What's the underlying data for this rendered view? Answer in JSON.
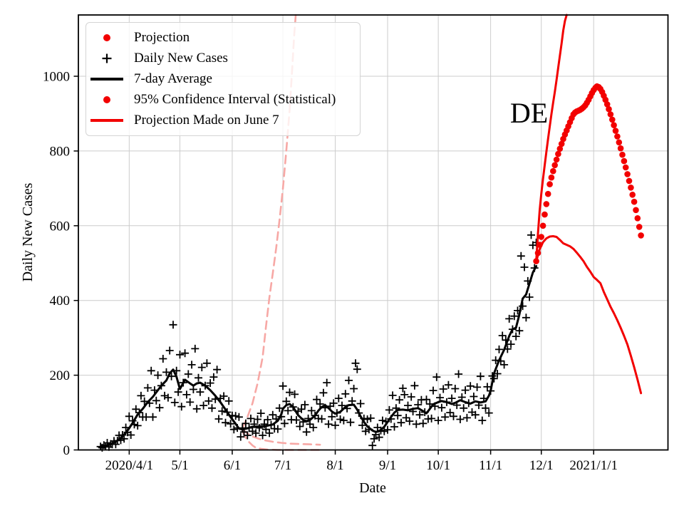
{
  "figure": {
    "annotation": {
      "label": "DE",
      "day": 225.5,
      "value": 876
    },
    "colors": {
      "projection_red": "#f20000",
      "ci_pink": "#f7a8a5",
      "series_black": "#000000",
      "grid_gray": "#cccccc"
    }
  },
  "legend": {
    "items": [
      {
        "label": "Projection",
        "marker": "red-dot"
      },
      {
        "label": "Daily New Cases",
        "marker": "black-plus"
      },
      {
        "label": "7-day Average",
        "marker": "black-line"
      },
      {
        "label": "95% Confidence Interval (Statistical)",
        "marker": "red-dot"
      },
      {
        "label": "Projection Made on June 7",
        "marker": "red-line"
      }
    ]
  },
  "chart_data": {
    "type": "line+scatter",
    "x_axis": {
      "label": "Date",
      "day_zero": "2020/4/1",
      "range_days": [
        -30.1,
        319
      ],
      "ticks": [
        {
          "day": 0,
          "label": "2020/4/1"
        },
        {
          "day": 30,
          "label": "5/1"
        },
        {
          "day": 61,
          "label": "6/1"
        },
        {
          "day": 91,
          "label": "7/1"
        },
        {
          "day": 122,
          "label": "8/1"
        },
        {
          "day": 153,
          "label": "9/1"
        },
        {
          "day": 183,
          "label": "10/1"
        },
        {
          "day": 214,
          "label": "11/1"
        },
        {
          "day": 244,
          "label": "12/1"
        },
        {
          "day": 275,
          "label": "2021/1/1"
        }
      ]
    },
    "y_axis": {
      "label": "Daily New Cases",
      "range": [
        0,
        1164
      ],
      "ticks": [
        0,
        200,
        400,
        600,
        800,
        1000
      ]
    },
    "series": [
      {
        "id": "june7-ci-upper",
        "name": "95% Confidence Interval (Statistical) upper",
        "kind": "line",
        "dash": "11 7",
        "width": 2.6,
        "color": "#f7a8a5",
        "points": [
          [
            67,
            58
          ],
          [
            70,
            88
          ],
          [
            73,
            125
          ],
          [
            76,
            178
          ],
          [
            79,
            248
          ],
          [
            81,
            330
          ],
          [
            83,
            408
          ],
          [
            85,
            472
          ],
          [
            87,
            540
          ],
          [
            89,
            615
          ],
          [
            91,
            700
          ],
          [
            93,
            800
          ],
          [
            95,
            910
          ],
          [
            96.5,
            1020
          ],
          [
            97.7,
            1110
          ],
          [
            98.6,
            1164
          ]
        ]
      },
      {
        "id": "june7-projection-mid",
        "name": "June 7 projection (middle)",
        "kind": "line",
        "dash": "11 7",
        "width": 2.6,
        "color": "#f7a8a5",
        "points": [
          [
            67,
            55
          ],
          [
            70,
            44
          ],
          [
            73,
            36
          ],
          [
            76,
            31
          ],
          [
            80,
            26
          ],
          [
            85,
            22
          ],
          [
            90,
            19
          ],
          [
            95,
            17
          ],
          [
            101,
            16
          ],
          [
            107,
            15
          ],
          [
            113,
            14
          ]
        ]
      },
      {
        "id": "june7-ci-lower",
        "name": "95% Confidence Interval (Statistical) lower",
        "kind": "line",
        "dash": "11 7",
        "width": 2.6,
        "color": "#f7a8a5",
        "points": [
          [
            67,
            50
          ],
          [
            69,
            33
          ],
          [
            71,
            21
          ],
          [
            73,
            12
          ],
          [
            75,
            6
          ],
          [
            78,
            3
          ],
          [
            82,
            1
          ],
          [
            88,
            0
          ],
          [
            96,
            0
          ],
          [
            104,
            0
          ],
          [
            113,
            0
          ]
        ]
      },
      {
        "id": "seven-day-average",
        "name": "7-day Average",
        "kind": "line",
        "dash": null,
        "width": 3,
        "color": "#000000",
        "points": [
          [
            -17,
            8
          ],
          [
            -14,
            11
          ],
          [
            -11,
            15
          ],
          [
            -8,
            22
          ],
          [
            -5,
            32
          ],
          [
            -2,
            46
          ],
          [
            0,
            58
          ],
          [
            2,
            72
          ],
          [
            5,
            95
          ],
          [
            8,
            110
          ],
          [
            11,
            128
          ],
          [
            14,
            142
          ],
          [
            17,
            160
          ],
          [
            19,
            172
          ],
          [
            22,
            186
          ],
          [
            24,
            205
          ],
          [
            26,
            215
          ],
          [
            28,
            196
          ],
          [
            30,
            163
          ],
          [
            33,
            188
          ],
          [
            36,
            178
          ],
          [
            38,
            172
          ],
          [
            40,
            178
          ],
          [
            42,
            180
          ],
          [
            45,
            172
          ],
          [
            48,
            160
          ],
          [
            51,
            145
          ],
          [
            54,
            128
          ],
          [
            57,
            108
          ],
          [
            60,
            88
          ],
          [
            63,
            70
          ],
          [
            65,
            57
          ],
          [
            67,
            55
          ],
          [
            70,
            58
          ],
          [
            73,
            62
          ],
          [
            77,
            63
          ],
          [
            81,
            64
          ],
          [
            85,
            68
          ],
          [
            88,
            78
          ],
          [
            90,
            95
          ],
          [
            91,
            110
          ],
          [
            93,
            120
          ],
          [
            95,
            123
          ],
          [
            97,
            115
          ],
          [
            100,
            93
          ],
          [
            103,
            80
          ],
          [
            105,
            77
          ],
          [
            107,
            80
          ],
          [
            110,
            92
          ],
          [
            112,
            105
          ],
          [
            114,
            115
          ],
          [
            116,
            120
          ],
          [
            118,
            112
          ],
          [
            120,
            103
          ],
          [
            122,
            97
          ],
          [
            125,
            102
          ],
          [
            128,
            115
          ],
          [
            130,
            120
          ],
          [
            133,
            121
          ],
          [
            135,
            108
          ],
          [
            137,
            90
          ],
          [
            139,
            75
          ],
          [
            141,
            63
          ],
          [
            144,
            52
          ],
          [
            146,
            48
          ],
          [
            148,
            50
          ],
          [
            151,
            62
          ],
          [
            153,
            75
          ],
          [
            155,
            88
          ],
          [
            157,
            100
          ],
          [
            159,
            107
          ],
          [
            162,
            108
          ],
          [
            165,
            106
          ],
          [
            168,
            110
          ],
          [
            171,
            112
          ],
          [
            174,
            104
          ],
          [
            176,
            98
          ],
          [
            178,
            110
          ],
          [
            180,
            122
          ],
          [
            183,
            128
          ],
          [
            185,
            131
          ],
          [
            188,
            128
          ],
          [
            191,
            123
          ],
          [
            193,
            126
          ],
          [
            196,
            133
          ],
          [
            199,
            128
          ],
          [
            202,
            124
          ],
          [
            205,
            130
          ],
          [
            208,
            127
          ],
          [
            211,
            130
          ],
          [
            213,
            145
          ],
          [
            214,
            158
          ],
          [
            216,
            205
          ],
          [
            219,
            240
          ],
          [
            222,
            268
          ],
          [
            225,
            305
          ],
          [
            227,
            323
          ],
          [
            229,
            327
          ],
          [
            231,
            362
          ],
          [
            233,
            405
          ],
          [
            235,
            416
          ],
          [
            237,
            445
          ],
          [
            239,
            475
          ],
          [
            241,
            492
          ]
        ]
      },
      {
        "id": "daily-new-cases",
        "name": "Daily New Cases",
        "kind": "scatter",
        "marker": "plus",
        "size": 5.5,
        "width": 1.8,
        "color": "#000000",
        "start_day": -17,
        "values": [
          9,
          6,
          13,
          10,
          19,
          8,
          16,
          15,
          24,
          15,
          25,
          39,
          26,
          40,
          30,
          60,
          47,
          90,
          40,
          78,
          68,
          109,
          65,
          100,
          145,
          88,
          130,
          88,
          166,
          125,
          212,
          88,
          160,
          132,
          200,
          113,
          172,
          244,
          145,
          208,
          140,
          266,
          197,
          335,
          127,
          212,
          155,
          255,
          116,
          180,
          259,
          148,
          203,
          128,
          228,
          162,
          271,
          110,
          193,
          155,
          221,
          119,
          172,
          232,
          131,
          179,
          112,
          195,
          136,
          215,
          83,
          138,
          104,
          144,
          73,
          101,
          131,
          70,
          92,
          55,
          91,
          59,
          88,
          35,
          59,
          48,
          71,
          39,
          59,
          84,
          50,
          69,
          45,
          82,
          59,
          98,
          39,
          69,
          55,
          81,
          45,
          67,
          94,
          57,
          83,
          56,
          112,
          89,
          171,
          71,
          130,
          105,
          154,
          81,
          115,
          149,
          80,
          104,
          63,
          109,
          75,
          121,
          48,
          84,
          69,
          105,
          60,
          92,
          135,
          84,
          123,
          83,
          153,
          113,
          180,
          69,
          117,
          89,
          125,
          66,
          99,
          138,
          82,
          119,
          79,
          150,
          111,
          186,
          74,
          131,
          164,
          232,
          216,
          99,
          124,
          66,
          84,
          50,
          82,
          55,
          85,
          12,
          30,
          41,
          60,
          34,
          52,
          79,
          50,
          76,
          54,
          107,
          83,
          146,
          62,
          112,
          92,
          134,
          73,
          165,
          148,
          86,
          119,
          77,
          142,
          103,
          172,
          69,
          121,
          94,
          134,
          71,
          101,
          135,
          83,
          123,
          84,
          159,
          117,
          195,
          79,
          140,
          113,
          163,
          88,
          128,
          174,
          100,
          138,
          90,
          164,
          120,
          203,
          82,
          141,
          112,
          160,
          86,
          125,
          171,
          101,
          143,
          94,
          168,
          120,
          197,
          79,
          138,
          112,
          169,
          99,
          158,
          198,
          191,
          240,
          204,
          269,
          238,
          306,
          228,
          294,
          270,
          351,
          283,
          323,
          358,
          304,
          373,
          319,
          519,
          385,
          489,
          354,
          452,
          409,
          575,
          548,
          487,
          555
        ]
      },
      {
        "id": "projection-dots",
        "name": "Projection",
        "kind": "scatter",
        "marker": "dot",
        "size": 4.3,
        "color": "#f20000",
        "start_day": 241,
        "values": [
          505,
          527,
          549,
          570,
          600,
          630,
          658,
          685,
          711,
          729,
          746,
          762,
          777,
          792,
          806,
          819,
          832,
          844,
          855,
          866,
          877,
          888,
          898,
          903,
          906,
          908,
          910,
          913,
          917,
          922,
          929,
          937,
          946,
          955,
          963,
          969,
          973,
          971,
          966,
          958,
          948,
          937,
          925,
          912,
          898,
          884,
          869,
          854,
          839,
          823,
          807,
          790,
          773,
          756,
          738,
          720,
          702,
          683,
          664,
          642,
          620,
          597,
          574
        ]
      },
      {
        "id": "projection-upper-bound",
        "name": "Projection Made on June 7 (upper line)",
        "kind": "line",
        "dash": null,
        "width": 3,
        "color": "#f20000",
        "points": [
          [
            241,
            505
          ],
          [
            242,
            578
          ],
          [
            243,
            640
          ],
          [
            244,
            685
          ],
          [
            245,
            725
          ],
          [
            246,
            762
          ],
          [
            247,
            797
          ],
          [
            248,
            832
          ],
          [
            249,
            866
          ],
          [
            250,
            898
          ],
          [
            251,
            929
          ],
          [
            252,
            958
          ],
          [
            253,
            990
          ],
          [
            254,
            1022
          ],
          [
            255,
            1055
          ],
          [
            256,
            1088
          ],
          [
            257,
            1122
          ],
          [
            258,
            1148
          ],
          [
            259,
            1164
          ]
        ]
      },
      {
        "id": "projection-lower-bound",
        "name": "Projection Made on June 7 (lower line)",
        "kind": "line",
        "dash": null,
        "width": 3,
        "color": "#f20000",
        "points": [
          [
            241,
            505
          ],
          [
            243,
            537
          ],
          [
            245,
            556
          ],
          [
            247,
            566
          ],
          [
            249,
            571
          ],
          [
            251,
            572
          ],
          [
            253,
            570
          ],
          [
            255,
            562
          ],
          [
            257,
            553
          ],
          [
            259,
            549
          ],
          [
            261,
            545
          ],
          [
            263,
            538
          ],
          [
            265,
            528
          ],
          [
            267,
            517
          ],
          [
            269,
            505
          ],
          [
            271,
            490
          ],
          [
            273,
            477
          ],
          [
            275,
            463
          ],
          [
            277,
            455
          ],
          [
            279,
            446
          ],
          [
            281,
            423
          ],
          [
            283,
            403
          ],
          [
            285,
            383
          ],
          [
            287,
            366
          ],
          [
            289,
            347
          ],
          [
            291,
            327
          ],
          [
            293,
            305
          ],
          [
            295,
            282
          ],
          [
            297,
            252
          ],
          [
            299,
            221
          ],
          [
            301,
            188
          ],
          [
            303,
            152
          ]
        ]
      }
    ]
  }
}
